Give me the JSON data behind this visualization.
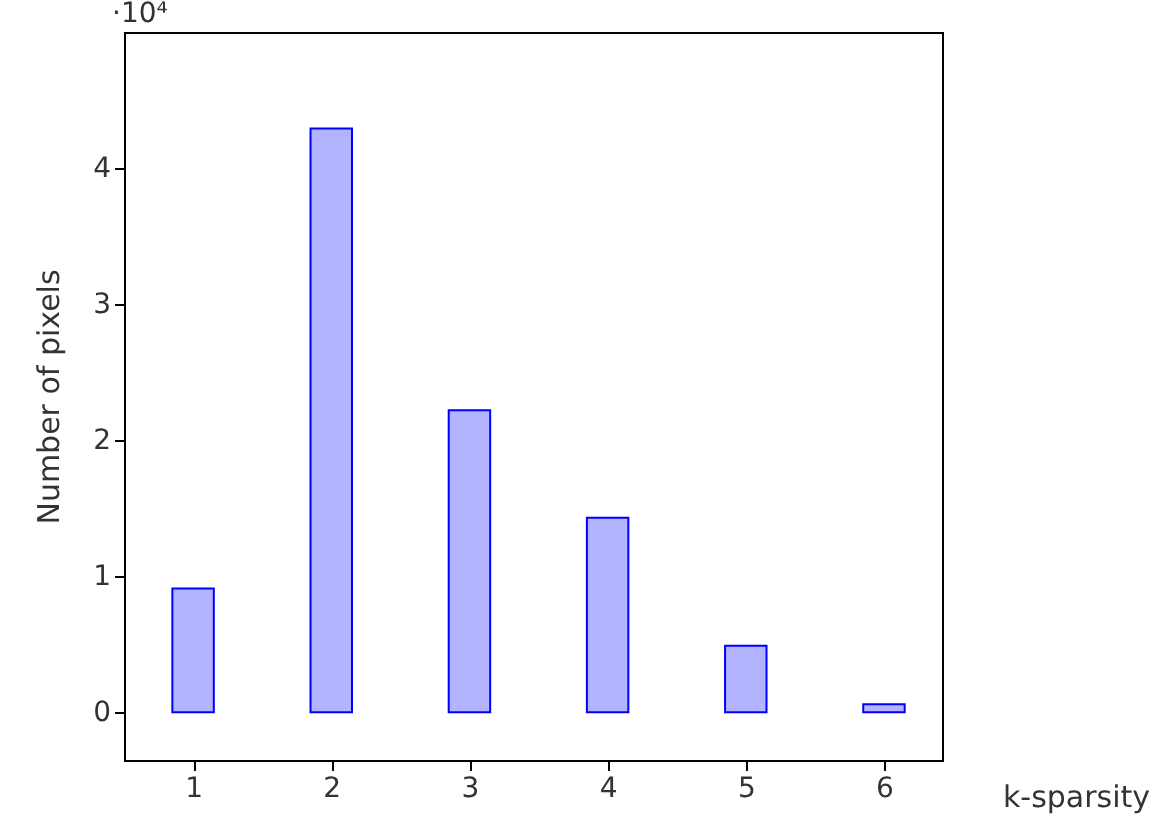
{
  "chart_data": {
    "type": "bar",
    "xlabel": "k-sparsity",
    "ylabel": "Number of pixels",
    "annotations": [
      "·10⁴"
    ],
    "x": [
      1,
      2,
      3,
      4,
      5,
      6
    ],
    "values": [
      0.91,
      4.29,
      2.22,
      1.43,
      0.49,
      0.06
    ],
    "color": "#b3b3ff",
    "xlim": [
      0.5,
      6.42
    ],
    "xticks": [
      1,
      2,
      3,
      4,
      5,
      6
    ],
    "ylim": [
      -0.35,
      5
    ],
    "yticks": [
      0,
      1,
      2,
      3,
      4
    ],
    "grid": false
  }
}
